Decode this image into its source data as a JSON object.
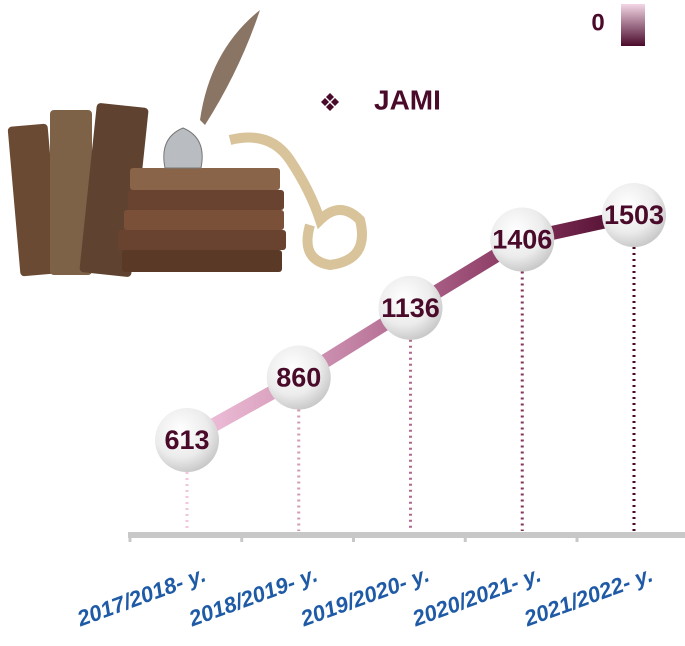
{
  "chart_data": {
    "type": "line",
    "categories": [
      "2017/2018- y.",
      "2018/2019- y.",
      "2019/2020- y.",
      "2020/2021- y.",
      "2021/2022- y."
    ],
    "series": [
      {
        "name": "JAMI",
        "color": "#4a0a2a",
        "values": [
          613,
          860,
          1136,
          1406,
          1503
        ]
      }
    ],
    "segment_colors": [
      "#f2c4de",
      "#d49ab8",
      "#b0688e",
      "#86345d",
      "#4a0a2a"
    ],
    "colorbar_label": "0",
    "axis_color": "#c8c8c8",
    "label_color": "#1f5aa6"
  }
}
